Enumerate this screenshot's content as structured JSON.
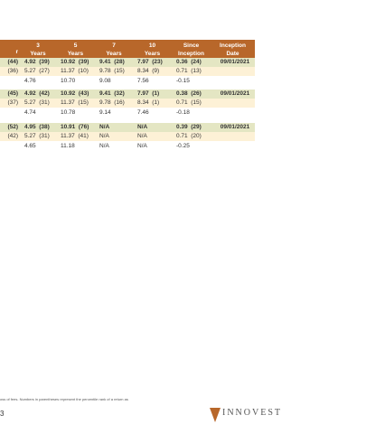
{
  "header": {
    "first": "r",
    "columns": [
      [
        "3",
        "Years"
      ],
      [
        "5",
        "Years"
      ],
      [
        "7",
        "Years"
      ],
      [
        "10",
        "Years"
      ],
      [
        "Since",
        "Inception"
      ],
      [
        "Inception",
        "Date"
      ]
    ]
  },
  "groups": [
    {
      "rows": [
        {
          "first": "(44)",
          "cells": [
            "4.92  (39)",
            "10.92  (39)",
            "9.41  (28)",
            "7.97  (23)",
            "0.36  (24)",
            "09/01/2021"
          ]
        },
        {
          "first": "(36)",
          "cells": [
            "5.27  (27)",
            "11.37  (10)",
            "9.78  (15)",
            "8.34  (9)",
            "0.71  (13)"
          ]
        },
        {
          "cells": [
            "4.76",
            "10.70",
            "9.08",
            "7.56",
            "-0.15"
          ]
        }
      ]
    },
    {
      "rows": [
        {
          "first": "(45)",
          "cells": [
            "4.92  (42)",
            "10.92  (43)",
            "9.41  (32)",
            "7.97  (1)",
            "0.38  (26)",
            "09/01/2021"
          ]
        },
        {
          "first": "(37)",
          "cells": [
            "5.27  (31)",
            "11.37  (15)",
            "9.78  (16)",
            "8.34  (1)",
            "0.71  (15)"
          ]
        },
        {
          "cells": [
            "4.74",
            "10.78",
            "9.14",
            "7.46",
            "-0.18"
          ]
        }
      ]
    },
    {
      "rows": [
        {
          "first": "(52)",
          "cells": [
            "4.95  (38)",
            "10.91  (76)",
            "N/A",
            "N/A",
            "0.39  (29)",
            "09/01/2021"
          ]
        },
        {
          "first": "(42)",
          "cells": [
            "5.27  (31)",
            "11.37  (41)",
            "N/A",
            "N/A",
            "0.71  (20)"
          ]
        },
        {
          "cells": [
            "4.65",
            "11.18",
            "N/A",
            "N/A",
            "-0.25"
          ]
        }
      ]
    }
  ],
  "footer": {
    "note": "oss of fees. Numbers in parentheses represent the percentile rank of a return as",
    "page": "3",
    "logo": "INNOVEST"
  }
}
